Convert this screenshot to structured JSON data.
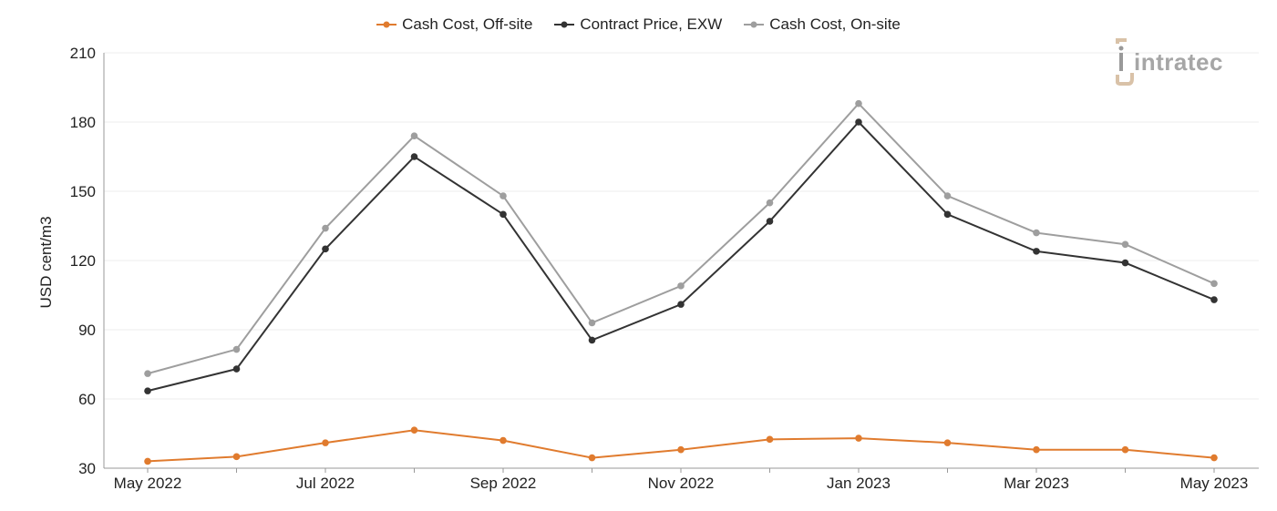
{
  "logo": {
    "text": "intratec"
  },
  "chart_data": {
    "type": "line",
    "ylabel": "USD cent/m3",
    "xlabel": "",
    "ylim": [
      30,
      210
    ],
    "yticks": [
      30,
      60,
      90,
      120,
      150,
      180,
      210
    ],
    "x": [
      "May 2022",
      "Jun 2022",
      "Jul 2022",
      "Aug 2022",
      "Sep 2022",
      "Oct 2022",
      "Nov 2022",
      "Dec 2022",
      "Jan 2023",
      "Feb 2023",
      "Mar 2023",
      "Apr 2023",
      "May 2023"
    ],
    "xtick_labels": [
      "May 2022",
      "",
      "Jul 2022",
      "",
      "Sep 2022",
      "",
      "Nov 2022",
      "",
      "Jan 2023",
      "",
      "Mar 2023",
      "",
      "May 2023"
    ],
    "grid": true,
    "legend_position": "top-center",
    "series": [
      {
        "name": "Cash Cost, Off-site",
        "color": "#E07B2E",
        "values": [
          33,
          35,
          41,
          46.5,
          42,
          34.5,
          38,
          42.5,
          43,
          41,
          38,
          38,
          34.5
        ]
      },
      {
        "name": "Contract Price, EXW",
        "color": "#333333",
        "values": [
          63.5,
          73,
          125,
          165,
          140,
          85.5,
          101,
          137,
          180,
          140,
          124,
          119,
          103
        ]
      },
      {
        "name": "Cash Cost, On-site",
        "color": "#9E9E9E",
        "values": [
          71,
          81.5,
          134,
          174,
          148,
          93,
          109,
          145,
          188,
          148,
          132,
          127,
          110
        ]
      }
    ]
  }
}
